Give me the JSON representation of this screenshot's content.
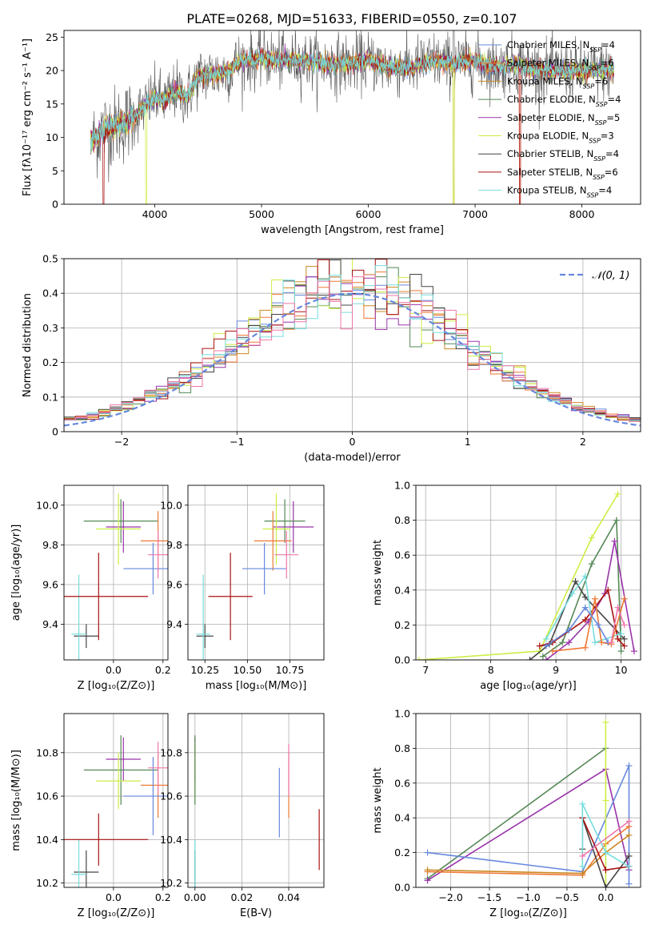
{
  "figure": {
    "title": "PLATE=0268, MJD=51633, FIBERID=0550, z=0.107"
  },
  "colors": {
    "chabrier_miles": "#6688dd",
    "salpeter_miles": "#ee7733",
    "kroupa_miles": "#cc8822",
    "chabrier_elodie": "#558855",
    "salpeter_elodie": "#9933aa",
    "kroupa_elodie": "#ccee44",
    "chabrier_stelib": "#444444",
    "salpeter_stelib": "#aa1111",
    "kroupa_stelib": "#77dddd",
    "extra": "#ee77aa",
    "normal_fit": "#6688dd",
    "grid": "#b0b0b0"
  },
  "chart_data": [
    {
      "id": "spectrum",
      "type": "line",
      "xlabel": "wavelength [Angstrom, rest frame]",
      "ylabel": "Flux [fλ10⁻¹⁷ erg cm⁻² s⁻¹ A⁻¹]",
      "xlim": [
        3150,
        8550
      ],
      "ylim": [
        0,
        26
      ],
      "xticks": [
        4000,
        5000,
        6000,
        7000,
        8000
      ],
      "yticks": [
        0,
        5,
        10,
        15,
        20,
        25
      ],
      "grid": false,
      "legend_loc": "upper right",
      "legend": [
        {
          "label": "Chabrier MILES, N",
          "sub": "SSP",
          "suffix": "=4",
          "color": "chabrier_miles"
        },
        {
          "label": "Salpeter MILES, N",
          "sub": "SSP",
          "suffix": "=6",
          "color": "salpeter_miles"
        },
        {
          "label": "Kroupa MILES, N",
          "sub": "SSP",
          "suffix": "=6",
          "color": "kroupa_miles"
        },
        {
          "label": "Chabrier ELODIE, N",
          "sub": "SSP",
          "suffix": "=4",
          "color": "chabrier_elodie"
        },
        {
          "label": "Salpeter ELODIE, N",
          "sub": "SSP",
          "suffix": "=5",
          "color": "salpeter_elodie"
        },
        {
          "label": "Kroupa ELODIE, N",
          "sub": "SSP",
          "suffix": "=3",
          "color": "kroupa_elodie"
        },
        {
          "label": "Chabrier STELIB, N",
          "sub": "SSP",
          "suffix": "=4",
          "color": "chabrier_stelib"
        },
        {
          "label": "Salpeter STELIB, N",
          "sub": "SSP",
          "suffix": "=6",
          "color": "salpeter_stelib"
        },
        {
          "label": "Kroupa STELIB, N",
          "sub": "SSP",
          "suffix": "=4",
          "color": "kroupa_stelib"
        }
      ],
      "continuum_x": [
        3400,
        3500,
        3600,
        3700,
        3800,
        3900,
        4000,
        4100,
        4200,
        4300,
        4400,
        4500,
        4600,
        4700,
        4800,
        4900,
        5000,
        5200,
        5400,
        5600,
        5800,
        6000,
        6200,
        6400,
        6600,
        6800,
        7000,
        7200,
        7400,
        7600,
        7800,
        8000,
        8200,
        8300
      ],
      "continuum_y": [
        9,
        11,
        11.5,
        12,
        13,
        14.5,
        16,
        15.5,
        17,
        16,
        19,
        19.5,
        19.5,
        20,
        21.5,
        21.5,
        22,
        21.5,
        21.5,
        21,
        21,
        21.5,
        20.5,
        20.5,
        21.5,
        21,
        21.5,
        20.5,
        21,
        20,
        20,
        20,
        20,
        20
      ]
    },
    {
      "id": "residuals",
      "type": "histogram",
      "xlabel": "(data-model)/error",
      "ylabel": "Normed distribution",
      "xlim": [
        -2.5,
        2.5
      ],
      "ylim": [
        0,
        0.5
      ],
      "xticks": [
        -2,
        -1,
        0,
        1,
        2
      ],
      "xticklabels": [
        "−2",
        "−1",
        "0",
        "1",
        "2"
      ],
      "yticks": [
        0,
        0.1,
        0.2,
        0.3,
        0.4,
        0.5
      ],
      "grid": true,
      "legend_loc": "upper right",
      "legend_label": "𝒩(0, 1)",
      "bin_width": 0.1,
      "normal": {
        "mean": 0,
        "sd": 1
      }
    },
    {
      "id": "age-vs-Z",
      "type": "scatter",
      "xlabel": "Z [log₁₀(Z/Z⊙)]",
      "ylabel": "age  [log₁₀(age/yr)]",
      "xlim": [
        -0.2,
        0.22
      ],
      "ylim": [
        9.22,
        10.1
      ],
      "xticks": [
        0.0,
        0.2
      ],
      "xticklabels": [
        "0.0",
        "0.2"
      ],
      "yticks": [
        9.4,
        9.6,
        9.8,
        10.0
      ],
      "grid": true,
      "points": [
        {
          "x": -0.11,
          "y": 9.34,
          "xe": 0.05,
          "ye": 0.06,
          "c": "chabrier_stelib"
        },
        {
          "x": -0.14,
          "y": 9.35,
          "xe": 0.03,
          "ye": 0.3,
          "c": "kroupa_stelib"
        },
        {
          "x": -0.06,
          "y": 9.54,
          "xe": 0.2,
          "ye": 0.22,
          "c": "salpeter_stelib"
        },
        {
          "x": 0.04,
          "y": 9.89,
          "xe": 0.07,
          "ye": 0.13,
          "c": "salpeter_elodie"
        },
        {
          "x": 0.03,
          "y": 9.92,
          "xe": 0.15,
          "ye": 0.11,
          "c": "chabrier_elodie"
        },
        {
          "x": 0.02,
          "y": 9.88,
          "xe": 0.09,
          "ye": 0.18,
          "c": "kroupa_elodie"
        },
        {
          "x": 0.18,
          "y": 9.82,
          "xe": 0.07,
          "ye": 0.15,
          "c": "salpeter_miles"
        },
        {
          "x": 0.16,
          "y": 9.68,
          "xe": 0.12,
          "ye": 0.13,
          "c": "chabrier_miles"
        },
        {
          "x": 0.18,
          "y": 9.75,
          "xe": 0.04,
          "ye": 0.12,
          "c": "extra"
        }
      ]
    },
    {
      "id": "age-vs-mass",
      "type": "scatter",
      "xlabel": "mass [log₁₀(M/M⊙)]",
      "xlim": [
        10.15,
        10.95
      ],
      "ylim": [
        9.22,
        10.1
      ],
      "xticks": [
        10.25,
        10.5,
        10.75
      ],
      "xticklabels": [
        "10.25",
        "10.50",
        "10.75"
      ],
      "yticks": [
        9.4,
        9.6,
        9.8,
        10.0
      ],
      "grid": true,
      "points": [
        {
          "x": 10.25,
          "y": 9.34,
          "xe": 0.05,
          "ye": 0.06,
          "c": "chabrier_stelib"
        },
        {
          "x": 10.24,
          "y": 9.35,
          "xe": 0.04,
          "ye": 0.3,
          "c": "kroupa_stelib"
        },
        {
          "x": 10.4,
          "y": 9.54,
          "xe": 0.13,
          "ye": 0.22,
          "c": "salpeter_stelib"
        },
        {
          "x": 10.77,
          "y": 9.89,
          "xe": 0.12,
          "ye": 0.13,
          "c": "salpeter_elodie"
        },
        {
          "x": 10.72,
          "y": 9.92,
          "xe": 0.12,
          "ye": 0.11,
          "c": "chabrier_elodie"
        },
        {
          "x": 10.67,
          "y": 9.88,
          "xe": 0.08,
          "ye": 0.18,
          "c": "kroupa_elodie"
        },
        {
          "x": 10.65,
          "y": 9.82,
          "xe": 0.11,
          "ye": 0.15,
          "c": "salpeter_miles"
        },
        {
          "x": 10.6,
          "y": 9.68,
          "xe": 0.13,
          "ye": 0.13,
          "c": "chabrier_miles"
        },
        {
          "x": 10.73,
          "y": 9.75,
          "xe": 0.07,
          "ye": 0.12,
          "c": "extra"
        }
      ]
    },
    {
      "id": "weight-vs-age",
      "type": "line",
      "xlabel": "age  [log₁₀(age/yr)]",
      "ylabel": "mass weight",
      "xlim": [
        6.85,
        10.3
      ],
      "ylim": [
        0,
        1.0
      ],
      "xticks": [
        7,
        8,
        9,
        10
      ],
      "yticks": [
        0.0,
        0.2,
        0.4,
        0.6,
        0.8,
        1.0
      ],
      "grid": true,
      "series": [
        {
          "c": "kroupa_elodie",
          "x": [
            6.9,
            8.75,
            9.55,
            9.95
          ],
          "y": [
            0.0,
            0.05,
            0.7,
            0.95
          ]
        },
        {
          "c": "chabrier_elodie",
          "x": [
            8.8,
            9.1,
            9.55,
            9.93,
            10.0
          ],
          "y": [
            0.02,
            0.1,
            0.55,
            0.8,
            0.05
          ]
        },
        {
          "c": "chabrier_stelib",
          "x": [
            8.6,
            8.9,
            9.3,
            9.45,
            10.05
          ],
          "y": [
            0.0,
            0.09,
            0.45,
            0.36,
            0.12
          ]
        },
        {
          "c": "salpeter_elodie",
          "x": [
            8.85,
            9.2,
            9.5,
            9.75,
            9.9,
            10.2
          ],
          "y": [
            0.0,
            0.1,
            0.22,
            0.38,
            0.68,
            0.05
          ]
        },
        {
          "c": "salpeter_stelib",
          "x": [
            8.75,
            8.95,
            9.45,
            9.8,
            9.95,
            10.05
          ],
          "y": [
            0.08,
            0.1,
            0.23,
            0.4,
            0.12,
            0.08
          ]
        },
        {
          "c": "kroupa_stelib",
          "x": [
            8.85,
            9.25,
            9.45,
            9.6,
            10.0
          ],
          "y": [
            0.12,
            0.38,
            0.48,
            0.1,
            0.15
          ]
        },
        {
          "c": "salpeter_miles",
          "x": [
            8.95,
            9.45,
            9.6,
            9.7,
            9.85,
            10.05
          ],
          "y": [
            0.05,
            0.07,
            0.35,
            0.1,
            0.09,
            0.35
          ]
        },
        {
          "c": "chabrier_miles",
          "x": [
            8.85,
            9.2,
            9.45,
            9.65,
            9.8
          ],
          "y": [
            0.08,
            0.17,
            0.3,
            0.2,
            0.1
          ]
        },
        {
          "c": "extra",
          "x": [
            9.85,
            9.95,
            10.05
          ],
          "y": [
            0.1,
            0.3,
            0.2
          ]
        }
      ]
    },
    {
      "id": "mass-vs-Z",
      "type": "scatter",
      "xlabel": "Z [log₁₀(Z/Z⊙)]",
      "ylabel": "mass [log₁₀(M/M⊙)]",
      "xlim": [
        -0.2,
        0.22
      ],
      "ylim": [
        10.18,
        10.98
      ],
      "xticks": [
        0.0,
        0.2
      ],
      "xticklabels": [
        "0.0",
        "0.2"
      ],
      "yticks": [
        10.2,
        10.4,
        10.6,
        10.8
      ],
      "grid": true,
      "points": [
        {
          "x": -0.11,
          "y": 10.25,
          "xe": 0.05,
          "ye": 0.1,
          "c": "chabrier_stelib"
        },
        {
          "x": -0.14,
          "y": 10.24,
          "xe": 0.03,
          "ye": 0.16,
          "c": "kroupa_stelib"
        },
        {
          "x": -0.06,
          "y": 10.4,
          "xe": 0.2,
          "ye": 0.12,
          "c": "salpeter_stelib"
        },
        {
          "x": 0.04,
          "y": 10.77,
          "xe": 0.07,
          "ye": 0.1,
          "c": "salpeter_elodie"
        },
        {
          "x": 0.03,
          "y": 10.72,
          "xe": 0.15,
          "ye": 0.16,
          "c": "chabrier_elodie"
        },
        {
          "x": 0.02,
          "y": 10.67,
          "xe": 0.09,
          "ye": 0.13,
          "c": "kroupa_elodie"
        },
        {
          "x": 0.18,
          "y": 10.65,
          "xe": 0.07,
          "ye": 0.15,
          "c": "salpeter_miles"
        },
        {
          "x": 0.16,
          "y": 10.6,
          "xe": 0.12,
          "ye": 0.18,
          "c": "chabrier_miles"
        },
        {
          "x": 0.18,
          "y": 10.73,
          "xe": 0.04,
          "ye": 0.12,
          "c": "extra"
        }
      ]
    },
    {
      "id": "mass-vs-EBV",
      "type": "scatter",
      "xlabel": "E(B-V)",
      "xlim": [
        -0.003,
        0.055
      ],
      "ylim": [
        10.18,
        10.98
      ],
      "xticks": [
        0.0,
        0.02,
        0.04
      ],
      "xticklabels": [
        "0.00",
        "0.02",
        "0.04"
      ],
      "yticks": [
        10.2,
        10.4,
        10.6,
        10.8
      ],
      "grid": true,
      "points": [
        {
          "x": 0.0,
          "y": 10.25,
          "xe": 0,
          "ye": 0.1,
          "c": "chabrier_stelib"
        },
        {
          "x": 0.0,
          "y": 10.24,
          "xe": 0,
          "ye": 0.16,
          "c": "kroupa_stelib"
        },
        {
          "x": 0.0,
          "y": 10.77,
          "xe": 0,
          "ye": 0.1,
          "c": "salpeter_elodie"
        },
        {
          "x": 0.0,
          "y": 10.72,
          "xe": 0,
          "ye": 0.13,
          "c": "kroupa_elodie"
        },
        {
          "x": 0.0,
          "y": 10.72,
          "xe": 0,
          "ye": 0.16,
          "c": "chabrier_elodie"
        },
        {
          "x": 0.036,
          "y": 10.57,
          "xe": 0,
          "ye": 0.16,
          "c": "chabrier_miles"
        },
        {
          "x": 0.04,
          "y": 10.65,
          "xe": 0,
          "ye": 0.15,
          "c": "salpeter_miles"
        },
        {
          "x": 0.04,
          "y": 10.72,
          "xe": 0,
          "ye": 0.12,
          "c": "extra"
        },
        {
          "x": 0.053,
          "y": 10.4,
          "xe": 0,
          "ye": 0.14,
          "c": "salpeter_stelib"
        }
      ]
    },
    {
      "id": "weight-vs-Z",
      "type": "line",
      "xlabel": "Z [log₁₀(Z/Z⊙)]",
      "ylabel": "mass weight",
      "xlim": [
        -2.45,
        0.45
      ],
      "ylim": [
        0,
        1.0
      ],
      "xticks": [
        -2.0,
        -1.5,
        -1.0,
        -0.5,
        0.0
      ],
      "xticklabels": [
        "−2.0",
        "−1.5",
        "−1.0",
        "−0.5",
        "0.0"
      ],
      "yticks": [
        0.0,
        0.2,
        0.4,
        0.6,
        0.8,
        1.0
      ],
      "grid": true,
      "series": [
        {
          "c": "chabrier_elodie",
          "x": [
            -2.3,
            0.0
          ],
          "y": [
            0.05,
            0.8
          ]
        },
        {
          "c": "salpeter_elodie",
          "x": [
            -2.3,
            0.0,
            0.3
          ],
          "y": [
            0.04,
            0.68,
            0.1
          ]
        },
        {
          "c": "chabrier_miles",
          "x": [
            -2.3,
            -0.3,
            0.3,
            0.3
          ],
          "y": [
            0.2,
            0.09,
            0.7,
            0.02
          ]
        },
        {
          "c": "salpeter_miles",
          "x": [
            -2.3,
            -0.3,
            0.0,
            0.3
          ],
          "y": [
            0.09,
            0.07,
            0.25,
            0.35
          ]
        },
        {
          "c": "kroupa_miles",
          "x": [
            -2.3,
            -0.3,
            0.0,
            0.3
          ],
          "y": [
            0.1,
            0.08,
            0.2,
            0.3
          ]
        },
        {
          "c": "kroupa_elodie",
          "x": [
            0.0,
            0.0,
            0.0
          ],
          "y": [
            0.0,
            0.5,
            0.95
          ]
        },
        {
          "c": "chabrier_stelib",
          "x": [
            -0.3,
            -0.3,
            0.0,
            0.3
          ],
          "y": [
            0.22,
            0.4,
            0.0,
            0.18
          ]
        },
        {
          "c": "salpeter_stelib",
          "x": [
            -0.3,
            0.0,
            0.3
          ],
          "y": [
            0.4,
            0.1,
            0.12
          ]
        },
        {
          "c": "kroupa_stelib",
          "x": [
            -0.3,
            -0.3,
            0.0,
            0.3
          ],
          "y": [
            0.12,
            0.48,
            0.2,
            0.12
          ]
        },
        {
          "c": "extra",
          "x": [
            -0.3,
            0.3
          ],
          "y": [
            0.18,
            0.38
          ]
        }
      ]
    }
  ]
}
